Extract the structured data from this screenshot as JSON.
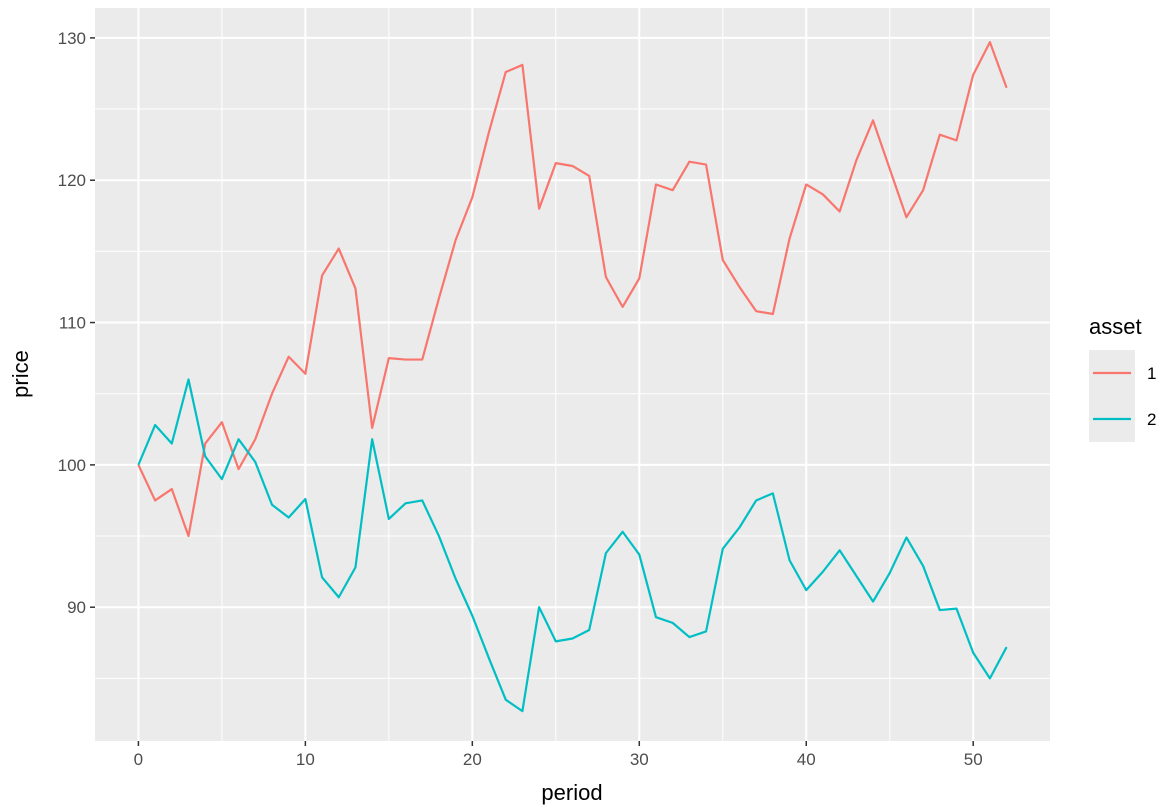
{
  "chart_data": {
    "type": "line",
    "title": "",
    "xlabel": "period",
    "ylabel": "price",
    "xlim": [
      -2.6,
      54.6
    ],
    "ylim": [
      80.6,
      132.1
    ],
    "x_ticks": [
      0,
      10,
      20,
      30,
      40,
      50
    ],
    "y_ticks": [
      90,
      100,
      110,
      120,
      130
    ],
    "grid": true,
    "legend": {
      "title": "asset",
      "position": "right"
    },
    "x": [
      0,
      1,
      2,
      3,
      4,
      5,
      6,
      7,
      8,
      9,
      10,
      11,
      12,
      13,
      14,
      15,
      16,
      17,
      18,
      19,
      20,
      21,
      22,
      23,
      24,
      25,
      26,
      27,
      28,
      29,
      30,
      31,
      32,
      33,
      34,
      35,
      36,
      37,
      38,
      39,
      40,
      41,
      42,
      43,
      44,
      45,
      46,
      47,
      48,
      49,
      50,
      51,
      52
    ],
    "series": [
      {
        "name": "1",
        "color": "#F8766D",
        "values": [
          100.0,
          97.5,
          98.3,
          95.0,
          101.5,
          103.0,
          99.7,
          101.8,
          105.0,
          107.6,
          106.4,
          113.3,
          115.2,
          112.4,
          102.6,
          107.5,
          107.4,
          107.4,
          111.7,
          115.8,
          118.8,
          123.4,
          127.6,
          128.1,
          118.0,
          121.2,
          121.0,
          120.3,
          113.2,
          111.1,
          113.1,
          119.7,
          119.3,
          121.3,
          121.1,
          114.4,
          112.5,
          110.8,
          110.6,
          115.9,
          119.7,
          119.0,
          117.8,
          121.4,
          124.2,
          120.8,
          117.4,
          119.3,
          123.2,
          122.8,
          127.4,
          129.7,
          126.5
        ]
      },
      {
        "name": "2",
        "color": "#00BFC4",
        "values": [
          100.0,
          102.8,
          101.5,
          106.0,
          100.6,
          99.0,
          101.8,
          100.2,
          97.2,
          96.3,
          97.6,
          92.1,
          90.7,
          92.8,
          101.8,
          96.2,
          97.3,
          97.5,
          95.0,
          92.0,
          89.4,
          86.4,
          83.5,
          82.7,
          90.0,
          87.6,
          87.8,
          88.4,
          93.8,
          95.3,
          93.7,
          89.3,
          88.9,
          87.9,
          88.3,
          94.1,
          95.6,
          97.5,
          98.0,
          93.3,
          91.2,
          92.5,
          94.0,
          92.2,
          90.4,
          92.4,
          94.9,
          92.9,
          89.8,
          89.9,
          86.8,
          85.0,
          87.2
        ]
      }
    ]
  }
}
